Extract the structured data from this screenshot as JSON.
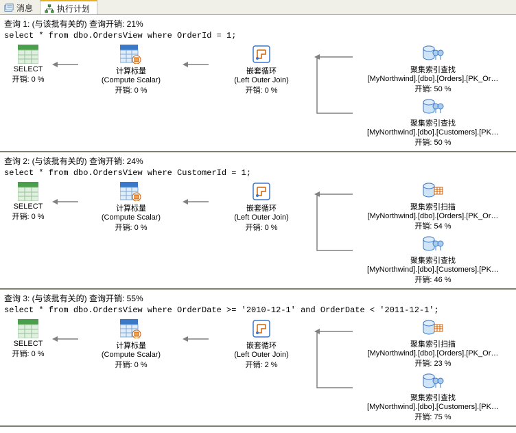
{
  "tabs": {
    "messages": {
      "label": "消息"
    },
    "plan": {
      "label": "执行计划"
    }
  },
  "colors": {
    "tab_bg": "#f0f0e8",
    "tab_active_top": "#e8b020",
    "border": "#808070",
    "select_icon": "#4aa04a",
    "compute_icon": "#3a78c8",
    "loop_icon": "#3a78c8",
    "seek_icon": "#3a78c8",
    "scan_icon": "#3a78c8",
    "arrow": "#808080"
  },
  "icons": {
    "select": {
      "type": "grid",
      "color_top": "#4aa04a",
      "color_body": "#cfe8cf"
    },
    "compute": {
      "type": "datasheet",
      "color": "#3a78c8",
      "accent": "#d06000"
    },
    "loop": {
      "type": "nestedloop",
      "color": "#3a78c8"
    },
    "seek": {
      "type": "indexseek",
      "color": "#3a78c8"
    },
    "scan": {
      "type": "indexscan",
      "color": "#3a78c8"
    }
  },
  "queries": [
    {
      "header": "查询 1: (与该批有关的) 查询开销: 21%",
      "sql": "select * from dbo.OrdersView where OrderId = 1;",
      "ops": {
        "select": {
          "title": "SELECT",
          "cost": "开销: 0 %"
        },
        "compute": {
          "title": "计算标量",
          "sub": "(Compute Scalar)",
          "cost": "开销: 0 %"
        },
        "loop": {
          "title": "嵌套循环",
          "sub": "(Left Outer Join)",
          "cost": "开销: 0 %"
        },
        "top": {
          "title": "聚集索引查找",
          "sub": "[MyNorthwind].[dbo].[Orders].[PK_Or…",
          "cost": "开销: 50 %",
          "icon": "seek"
        },
        "bottom": {
          "title": "聚集索引查找",
          "sub": "[MyNorthwind].[dbo].[Customers].[PK…",
          "cost": "开销: 50 %",
          "icon": "seek"
        }
      }
    },
    {
      "header": "查询 2: (与该批有关的) 查询开销: 24%",
      "sql": "select * from dbo.OrdersView where CustomerId = 1;",
      "ops": {
        "select": {
          "title": "SELECT",
          "cost": "开销: 0 %"
        },
        "compute": {
          "title": "计算标量",
          "sub": "(Compute Scalar)",
          "cost": "开销: 0 %"
        },
        "loop": {
          "title": "嵌套循环",
          "sub": "(Left Outer Join)",
          "cost": "开销: 0 %"
        },
        "top": {
          "title": "聚集索引扫描",
          "sub": "[MyNorthwind].[dbo].[Orders].[PK_Or…",
          "cost": "开销: 54 %",
          "icon": "scan"
        },
        "bottom": {
          "title": "聚集索引查找",
          "sub": "[MyNorthwind].[dbo].[Customers].[PK…",
          "cost": "开销: 46 %",
          "icon": "seek"
        }
      }
    },
    {
      "header": "查询 3: (与该批有关的) 查询开销: 55%",
      "sql": "select * from dbo.OrdersView where OrderDate >= '2010-12-1' and OrderDate < '2011-12-1';",
      "ops": {
        "select": {
          "title": "SELECT",
          "cost": "开销: 0 %"
        },
        "compute": {
          "title": "计算标量",
          "sub": "(Compute Scalar)",
          "cost": "开销: 0 %"
        },
        "loop": {
          "title": "嵌套循环",
          "sub": "(Left Outer Join)",
          "cost": "开销: 2 %"
        },
        "top": {
          "title": "聚集索引扫描",
          "sub": "[MyNorthwind].[dbo].[Orders].[PK_Or…",
          "cost": "开销: 23 %",
          "icon": "scan"
        },
        "bottom": {
          "title": "聚集索引查找",
          "sub": "[MyNorthwind].[dbo].[Customers].[PK…",
          "cost": "开销: 75 %",
          "icon": "seek"
        }
      }
    }
  ]
}
